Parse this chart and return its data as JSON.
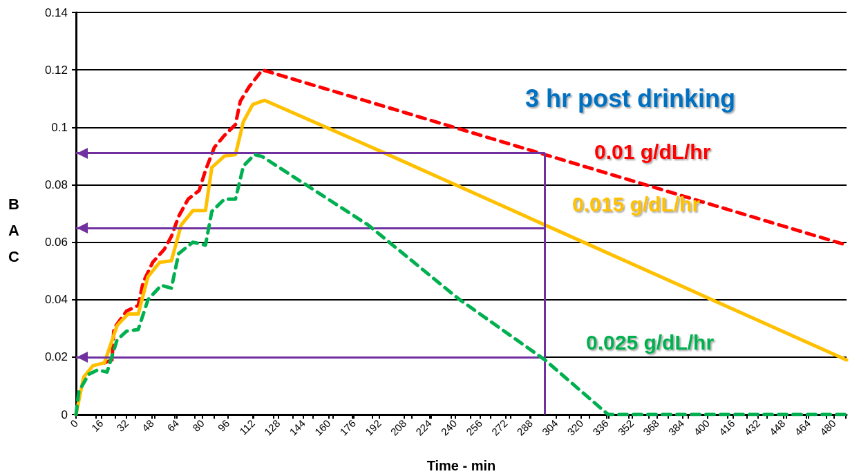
{
  "chart_data": {
    "type": "line",
    "xlabel": "Time - min",
    "ylabel": "BAC",
    "xlim": [
      0,
      488
    ],
    "xticks": [
      0,
      16,
      32,
      48,
      64,
      80,
      96,
      112,
      128,
      144,
      160,
      176,
      192,
      208,
      224,
      240,
      256,
      272,
      288,
      304,
      320,
      336,
      352,
      368,
      384,
      400,
      416,
      432,
      448,
      464,
      480
    ],
    "ylim": [
      0,
      0.14
    ],
    "yticks": [
      0,
      0.02,
      0.04,
      0.06,
      0.08,
      0.1,
      0.12,
      0.14
    ],
    "grid": "y",
    "legend": false,
    "marker": "none",
    "annotations": [
      "3 hr post drinking"
    ],
    "ref_lines": [
      {
        "axis": "x",
        "value": 297,
        "label": null,
        "color": "#7030a0"
      },
      {
        "axis": "y",
        "value": 0.091,
        "label": null,
        "color": "#7030a0"
      },
      {
        "axis": "y",
        "value": 0.065,
        "label": null,
        "color": "#7030a0"
      },
      {
        "axis": "y",
        "value": 0.02,
        "label": null,
        "color": "#7030a0"
      }
    ],
    "series": [
      {
        "name": "0.01 g/dL/hr",
        "color": "#ff0000",
        "line_style": "dashed",
        "x": [
          18,
          22.8,
          24,
          32,
          39.4,
          42.5,
          48.6,
          56,
          60.4,
          65,
          71,
          78,
          82,
          87.6,
          93.7,
          101,
          104,
          109.5,
          118,
          200,
          297,
          488
        ],
        "values": [
          0.018,
          0.019,
          0.03,
          0.036,
          0.038,
          0.046,
          0.053,
          0.0576,
          0.062,
          0.069,
          0.075,
          0.078,
          0.085,
          0.093,
          0.097,
          0.101,
          0.109,
          0.114,
          0.12,
          0.1065,
          0.0905,
          0.059
        ]
      },
      {
        "name": "0.015 g/dL/hr",
        "color": "#ffc000",
        "line_style": "solid",
        "x": [
          0,
          4.8,
          10.7,
          18,
          26,
          33,
          39.4,
          45.6,
          53,
          60.4,
          66.6,
          74,
          82,
          86,
          94,
          101,
          106,
          112,
          119.5,
          193.6,
          297,
          488
        ],
        "values": [
          0,
          0.013,
          0.017,
          0.018,
          0.031,
          0.035,
          0.035,
          0.048,
          0.053,
          0.0535,
          0.066,
          0.071,
          0.071,
          0.086,
          0.09,
          0.0905,
          0.102,
          0.108,
          0.1094,
          0.0915,
          0.066,
          0.019
        ]
      },
      {
        "name": "0.025 g/dL/hr",
        "color": "#00b050",
        "line_style": "dashed",
        "x": [
          0,
          1.8,
          8,
          13.6,
          19.7,
          26,
          32,
          39.4,
          45.6,
          54,
          60.4,
          65,
          74,
          82,
          86,
          94,
          101,
          106,
          113,
          118,
          185,
          242,
          297,
          337,
          488
        ],
        "values": [
          0,
          0.008,
          0.014,
          0.0155,
          0.0148,
          0.026,
          0.029,
          0.0296,
          0.04,
          0.045,
          0.044,
          0.056,
          0.06,
          0.059,
          0.0707,
          0.075,
          0.075,
          0.0865,
          0.0905,
          0.0898,
          0.066,
          0.0404,
          0.019,
          0,
          0
        ]
      }
    ]
  }
}
